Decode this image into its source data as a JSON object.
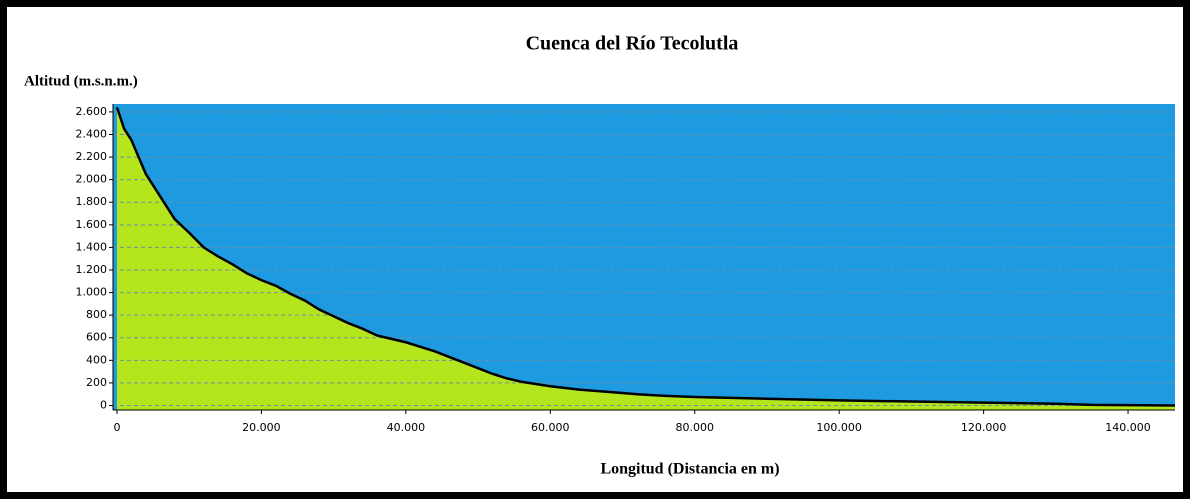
{
  "chart_data": {
    "type": "area",
    "title": "Cuenca del Río Tecolutla",
    "y_label": "Altitud (m.s.n.m.)",
    "x_label": "Longitud (Distancia en m)",
    "x": [
      0,
      1000,
      2000,
      3000,
      4000,
      5000,
      6000,
      8000,
      10000,
      12000,
      14000,
      16000,
      18000,
      20000,
      22000,
      24000,
      26000,
      28000,
      30000,
      32000,
      34000,
      36000,
      38000,
      40000,
      42000,
      44000,
      46000,
      48000,
      50000,
      52000,
      54000,
      56000,
      58000,
      60000,
      64000,
      68000,
      72000,
      76000,
      80000,
      90000,
      100000,
      110000,
      120000,
      130000,
      135000,
      146500
    ],
    "values": [
      2640,
      2450,
      2350,
      2200,
      2050,
      1950,
      1850,
      1650,
      1530,
      1400,
      1320,
      1250,
      1170,
      1110,
      1060,
      990,
      930,
      850,
      790,
      730,
      680,
      620,
      590,
      560,
      520,
      480,
      430,
      380,
      330,
      280,
      240,
      210,
      190,
      170,
      140,
      120,
      100,
      85,
      75,
      60,
      45,
      35,
      25,
      15,
      5,
      0
    ],
    "color": "#b5e61d",
    "background_color": "#1e9be0",
    "line_color": "#000000",
    "xlim": [
      -550,
      146500
    ],
    "ylim": [
      -40,
      2670
    ],
    "xticks": [
      0,
      {
        "value": 20000,
        "label": "20.000"
      },
      {
        "value": 40000,
        "label": "40.000"
      },
      {
        "value": 60000,
        "label": "60.000"
      },
      {
        "value": 80000,
        "label": "80.000"
      },
      {
        "value": 100000,
        "label": "100.000"
      },
      {
        "value": 120000,
        "label": "120.000"
      },
      {
        "value": 140000,
        "label": "140.000"
      }
    ],
    "yticks": [
      0,
      200,
      400,
      600,
      800,
      {
        "value": 1000,
        "label": "1.000"
      },
      {
        "value": 1200,
        "label": "1.200"
      },
      {
        "value": 1400,
        "label": "1.400"
      },
      {
        "value": 1600,
        "label": "1.600"
      },
      {
        "value": 1800,
        "label": "1.800"
      },
      {
        "value": 2000,
        "label": "2.000"
      },
      {
        "value": 2200,
        "label": "2.200"
      },
      {
        "value": 2400,
        "label": "2.400"
      },
      {
        "value": 2600,
        "label": "2.600"
      }
    ],
    "grid": true
  }
}
